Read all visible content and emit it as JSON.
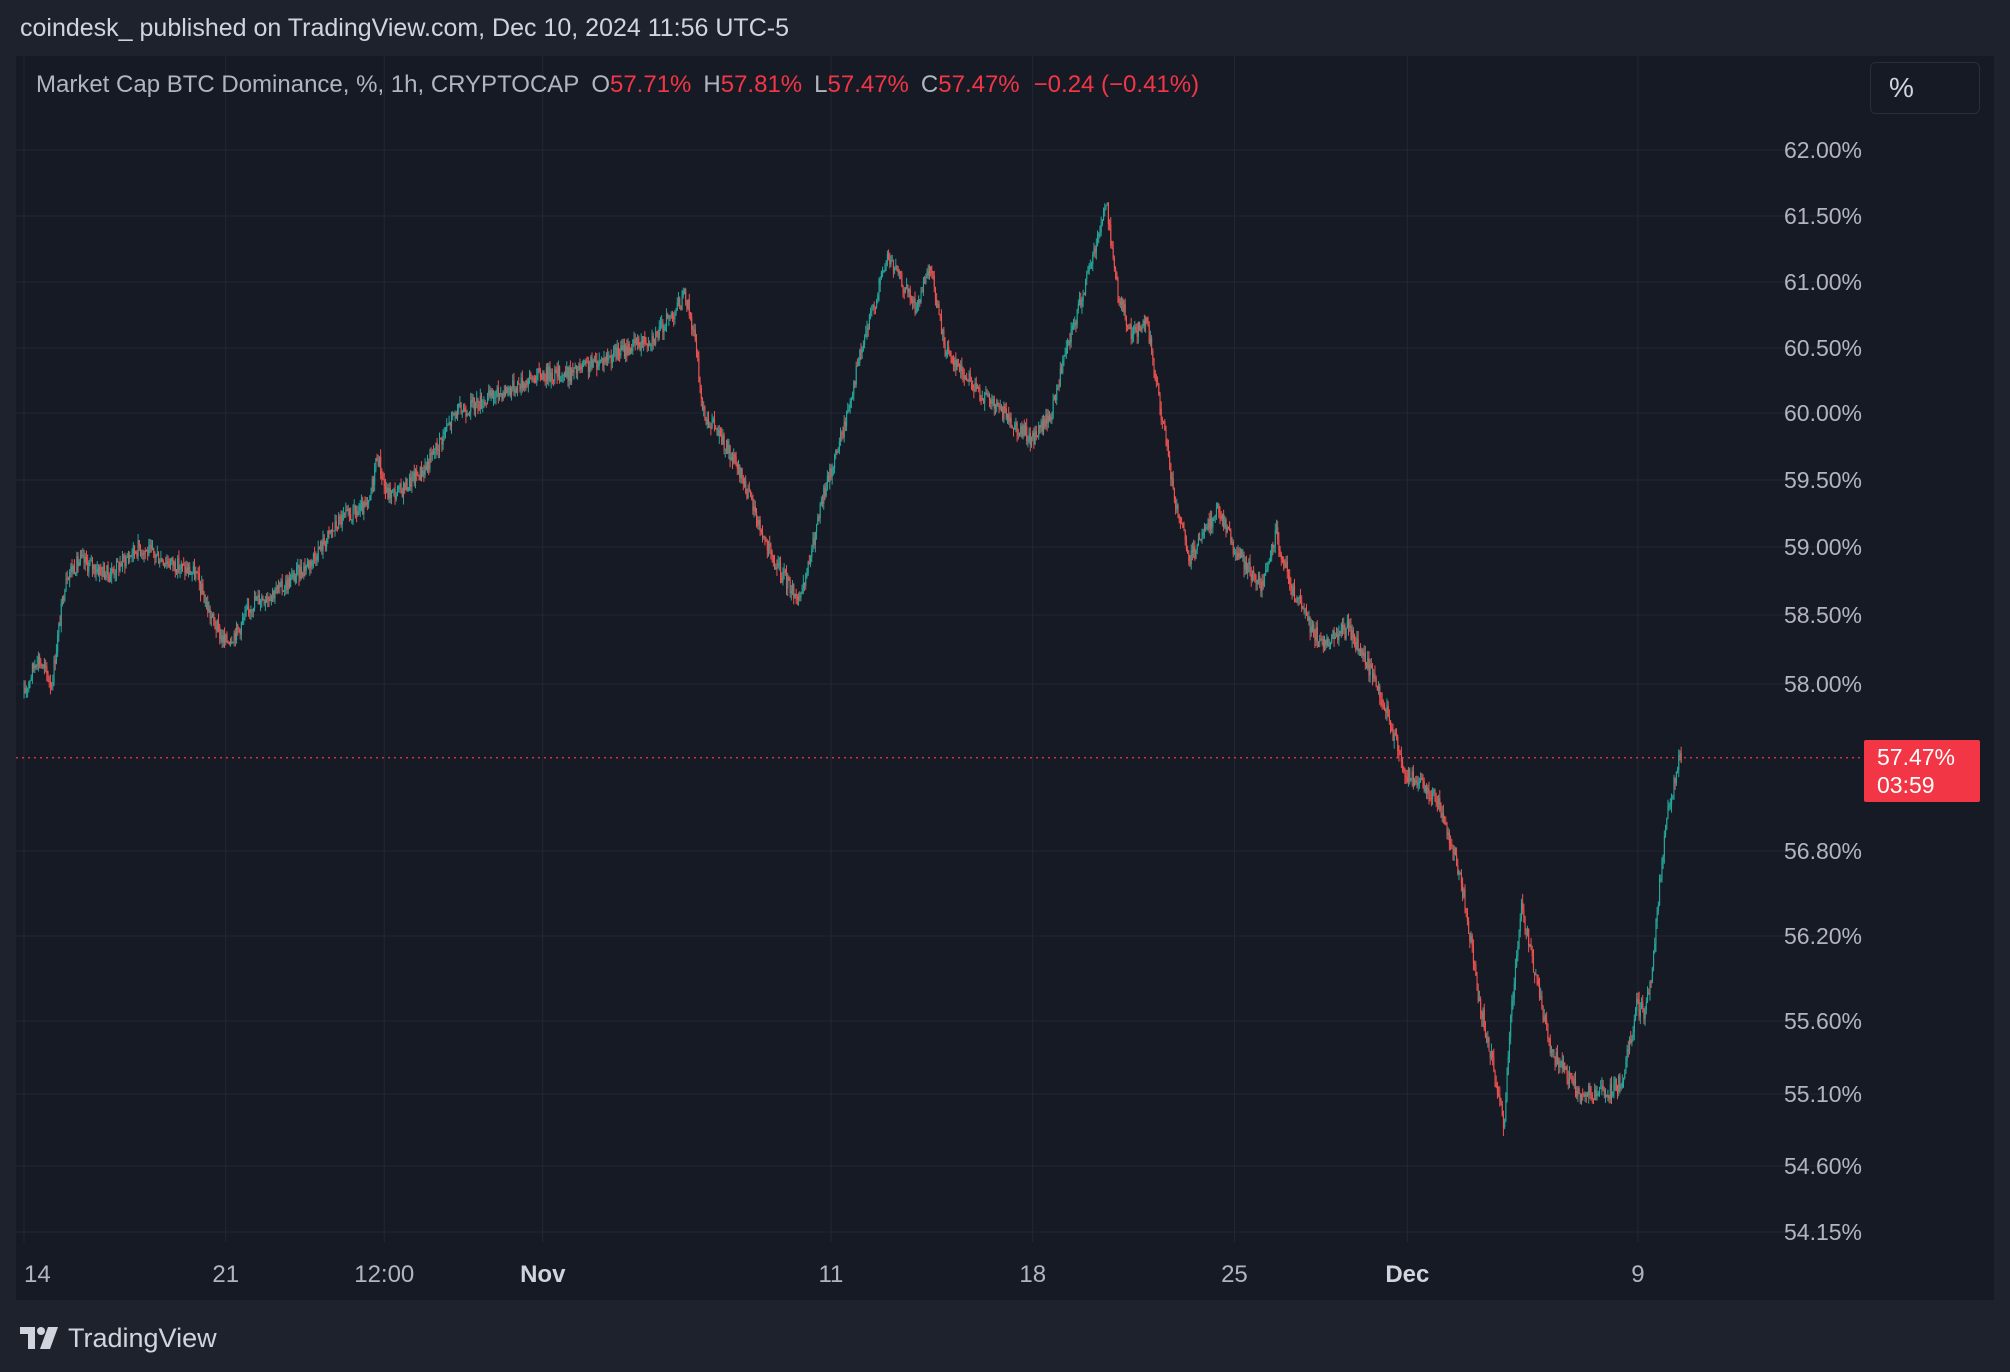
{
  "header": {
    "publisher_text": "coindesk_ published on TradingView.com, Dec 10, 2024 11:56 UTC-5"
  },
  "legend": {
    "symbol": "Market Cap BTC Dominance, %, 1h, CRYPTOCAP",
    "open_label": "O",
    "open_value": "57.71%",
    "high_label": "H",
    "high_value": "57.81%",
    "low_label": "L",
    "low_value": "57.47%",
    "close_label": "C",
    "close_value": "57.47%",
    "change": "−0.24 (−0.41%)"
  },
  "scale_toggle": {
    "label": "%"
  },
  "last_price": {
    "value": "57.47%",
    "countdown": "03:59"
  },
  "footer": {
    "brand": "TradingView"
  },
  "colors": {
    "up": "#26a69a",
    "down": "#ef5350",
    "grid": "#242733",
    "text": "#b2b5be",
    "accent": "#f23645"
  },
  "chart_data": {
    "type": "candlestick",
    "title": "Market Cap BTC Dominance, %, 1h, CRYPTOCAP",
    "timeframe": "1h",
    "y_unit": "%",
    "ylim": [
      54.0,
      62.3
    ],
    "y_ticks": [
      "62.00%",
      "61.50%",
      "61.00%",
      "60.50%",
      "60.00%",
      "59.50%",
      "59.00%",
      "58.50%",
      "58.00%",
      "56.80%",
      "56.20%",
      "55.60%",
      "55.10%",
      "54.60%",
      "54.15%"
    ],
    "y_tick_values": [
      62.0,
      61.5,
      61.0,
      60.5,
      60.0,
      59.5,
      59.0,
      58.5,
      58.0,
      56.8,
      56.2,
      55.6,
      55.1,
      54.6,
      54.15
    ],
    "x_ticks": [
      {
        "label": "14",
        "day": 0,
        "bold": false
      },
      {
        "label": "21",
        "day": 7,
        "bold": false
      },
      {
        "label": "12:00",
        "day": 12.5,
        "bold": false
      },
      {
        "label": "Nov",
        "day": 18,
        "bold": true
      },
      {
        "label": "11",
        "day": 28,
        "bold": false
      },
      {
        "label": "18",
        "day": 35,
        "bold": false
      },
      {
        "label": "25",
        "day": 42,
        "bold": false
      },
      {
        "label": "Dec",
        "day": 48,
        "bold": true
      },
      {
        "label": "9",
        "day": 56,
        "bold": false
      }
    ],
    "x_range_days": [
      0,
      62
    ],
    "last_day": 57.5,
    "last_value": 57.47,
    "path_day": [
      0,
      0.5,
      1,
      1.5,
      2,
      3,
      4,
      5,
      6,
      6.5,
      7,
      7.5,
      8,
      9,
      10,
      11,
      12,
      12.3,
      12.6,
      13,
      14,
      15,
      16,
      17,
      18,
      19,
      20,
      21,
      22,
      23,
      23.3,
      23.6,
      24,
      25,
      26,
      27,
      27.3,
      27.8,
      28.5,
      29,
      30,
      30.5,
      31,
      31.5,
      32,
      33,
      33.5,
      34,
      35,
      35.7,
      36,
      37,
      37.6,
      38,
      38.5,
      39,
      40,
      40.5,
      41,
      41.5,
      42,
      43,
      43.5,
      44,
      45,
      46,
      47,
      48,
      49,
      49.5,
      50,
      50.5,
      51,
      51.4,
      51.6,
      52,
      52.5,
      53,
      54,
      55,
      55.5,
      56,
      56.3,
      56.5,
      57,
      57.5
    ],
    "path_value": [
      57.9,
      58.2,
      58.0,
      58.8,
      58.9,
      58.8,
      59.0,
      58.9,
      58.8,
      58.5,
      58.3,
      58.4,
      58.6,
      58.7,
      58.9,
      59.2,
      59.3,
      59.7,
      59.4,
      59.4,
      59.6,
      60.0,
      60.1,
      60.2,
      60.3,
      60.3,
      60.4,
      60.5,
      60.6,
      60.9,
      60.6,
      60.0,
      59.9,
      59.5,
      58.9,
      58.6,
      58.9,
      59.4,
      59.9,
      60.4,
      61.2,
      61.0,
      60.8,
      61.1,
      60.5,
      60.2,
      60.1,
      60.0,
      59.8,
      60.0,
      60.3,
      61.1,
      61.6,
      60.9,
      60.6,
      60.7,
      59.3,
      58.9,
      59.1,
      59.3,
      59.0,
      58.7,
      59.1,
      58.7,
      58.3,
      58.4,
      58.0,
      57.35,
      57.2,
      56.9,
      56.5,
      55.8,
      55.3,
      54.85,
      55.6,
      56.4,
      55.9,
      55.4,
      55.1,
      55.1,
      55.2,
      55.7,
      55.65,
      55.9,
      57.0,
      57.47
    ]
  }
}
